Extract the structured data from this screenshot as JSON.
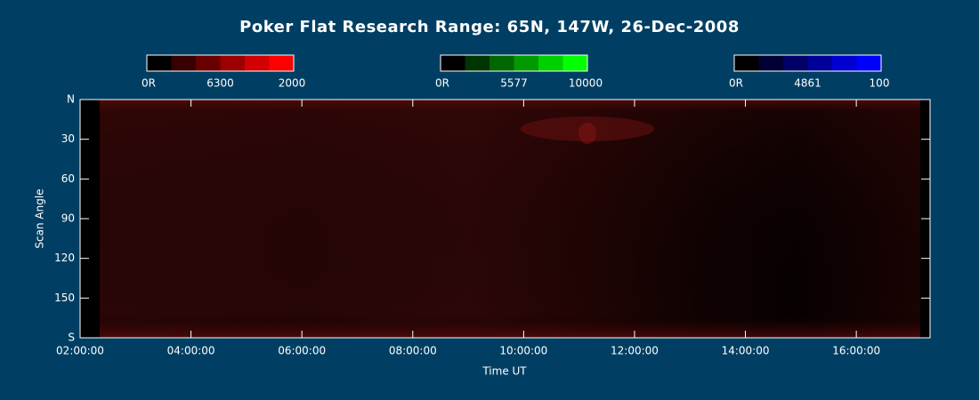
{
  "chart_data": {
    "type": "keogram",
    "title": "Poker Flat Research Range: 65N, 147W, 26-Dec-2008",
    "xlabel": "Time UT",
    "ylabel": "Scan Angle",
    "xlim": [
      2,
      17.33
    ],
    "xticks": [
      {
        "value": 2,
        "label": "02:00:00"
      },
      {
        "value": 4,
        "label": "04:00:00"
      },
      {
        "value": 6,
        "label": "06:00:00"
      },
      {
        "value": 8,
        "label": "08:00:00"
      },
      {
        "value": 10,
        "label": "10:00:00"
      },
      {
        "value": 12,
        "label": "12:00:00"
      },
      {
        "value": 14,
        "label": "14:00:00"
      },
      {
        "value": 16,
        "label": "16:00:00"
      }
    ],
    "ylim": [
      0,
      180
    ],
    "yticks": [
      {
        "value": 0,
        "label": "N"
      },
      30,
      60,
      90,
      120,
      150,
      {
        "value": 180,
        "label": "S"
      }
    ],
    "colorbars": [
      {
        "min_label": "0R",
        "wavelength": 6300,
        "max": 2000,
        "colors": [
          "#000000",
          "#380000",
          "#680000",
          "#9c0000",
          "#d20000",
          "#ff0000"
        ]
      },
      {
        "min_label": "0R",
        "wavelength": 5577,
        "max": 10000,
        "colors": [
          "#000000",
          "#003400",
          "#006600",
          "#009a00",
          "#00d000",
          "#00ff00"
        ]
      },
      {
        "min_label": "0R",
        "wavelength": 4861,
        "max": 100,
        "colors": [
          "#000000",
          "#000034",
          "#000066",
          "#00009a",
          "#0000d0",
          "#0000ff"
        ]
      }
    ]
  }
}
